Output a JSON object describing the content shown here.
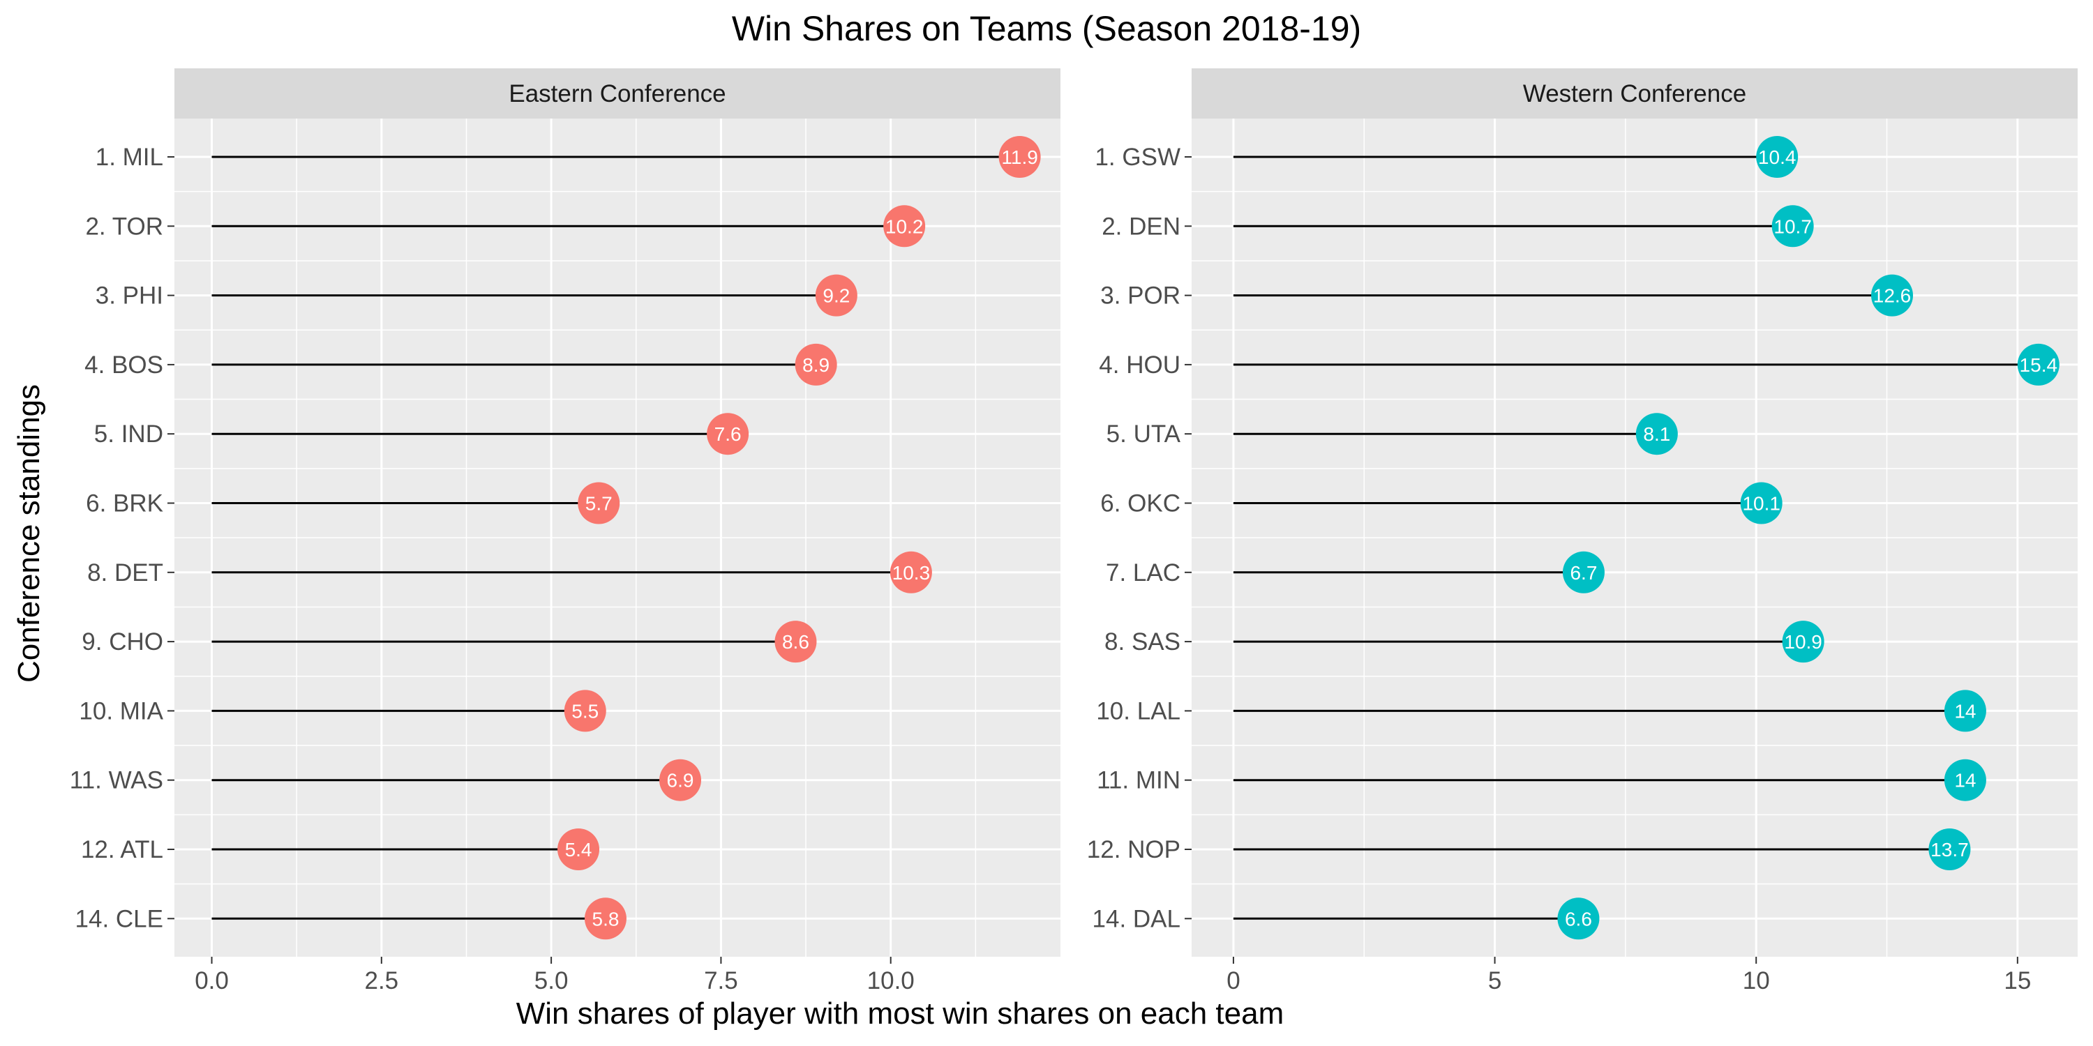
{
  "chart_data": {
    "type": "lollipop",
    "title": "Win Shares on Teams (Season 2018-19)",
    "xlabel": "Win shares of player with most win shares on each team",
    "ylabel": "Conference standings",
    "panels": [
      {
        "name": "Eastern Conference",
        "color": "#F8766D",
        "xlim": [
          -0.55,
          12.5
        ],
        "xticks": [
          0,
          2.5,
          5,
          7.5,
          10
        ],
        "xtick_labels": [
          "0.0",
          "2.5",
          "5.0",
          "7.5",
          "10.0"
        ],
        "xminor": [
          1.25,
          3.75,
          6.25,
          8.75,
          11.25
        ],
        "categories": [
          "1. MIL",
          "2. TOR",
          "3. PHI",
          "4. BOS",
          "5. IND",
          "6. BRK",
          "8. DET",
          "9. CHO",
          "10. MIA",
          "11. WAS",
          "12. ATL",
          "14. CLE"
        ],
        "values": [
          11.9,
          10.2,
          9.2,
          8.9,
          7.6,
          5.7,
          10.3,
          8.6,
          5.5,
          6.9,
          5.4,
          5.8
        ],
        "labels": [
          "11.9",
          "10.2",
          "9.2",
          "8.9",
          "7.6",
          "5.7",
          "10.3",
          "8.6",
          "5.5",
          "6.9",
          "5.4",
          "5.8"
        ]
      },
      {
        "name": "Western Conference",
        "color": "#00BFC4",
        "xlim": [
          -0.8,
          16.15
        ],
        "xticks": [
          0,
          5,
          10,
          15
        ],
        "xtick_labels": [
          "0",
          "5",
          "10",
          "15"
        ],
        "xminor": [
          2.5,
          7.5,
          12.5
        ],
        "categories": [
          "1. GSW",
          "2. DEN",
          "3. POR",
          "4. HOU",
          "5. UTA",
          "6. OKC",
          "7. LAC",
          "8. SAS",
          "10. LAL",
          "11. MIN",
          "12. NOP",
          "14. DAL"
        ],
        "values": [
          10.4,
          10.7,
          12.6,
          15.4,
          8.1,
          10.1,
          6.7,
          10.9,
          14,
          14,
          13.7,
          6.6
        ],
        "labels": [
          "10.4",
          "10.7",
          "12.6",
          "15.4",
          "8.1",
          "10.1",
          "6.7",
          "10.9",
          "14",
          "14",
          "13.7",
          "6.6"
        ]
      }
    ],
    "grid": true,
    "legend": "none"
  }
}
